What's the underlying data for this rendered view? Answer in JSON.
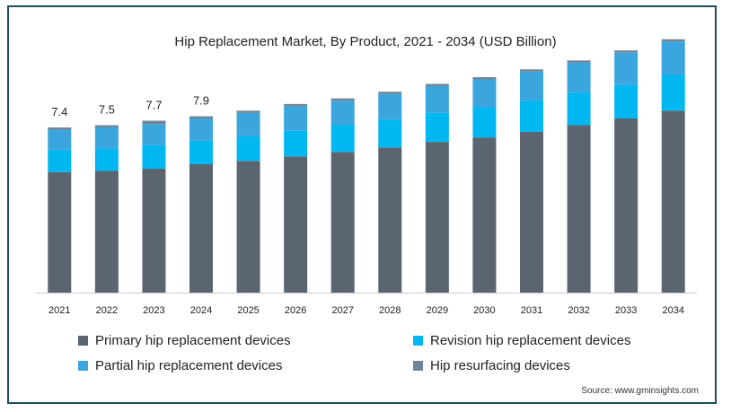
{
  "chart_data": {
    "type": "bar",
    "stacked": true,
    "title": "Hip Replacement Market, By Product, 2021 - 2034 (USD Billion)",
    "xlabel": "",
    "ylabel": "",
    "categories": [
      "2021",
      "2022",
      "2023",
      "2024",
      "2025",
      "2026",
      "2027",
      "2028",
      "2029",
      "2030",
      "2031",
      "2032",
      "2033",
      "2034"
    ],
    "series": [
      {
        "name": "Primary hip replacement devices",
        "color": "#5a6570",
        "values": [
          5.4,
          5.45,
          5.55,
          5.75,
          5.9,
          6.1,
          6.3,
          6.5,
          6.75,
          6.95,
          7.2,
          7.5,
          7.8,
          8.15
        ]
      },
      {
        "name": "Revision hip replacement devices",
        "color": "#00b7f1",
        "values": [
          1.0,
          1.0,
          1.05,
          1.05,
          1.1,
          1.15,
          1.2,
          1.25,
          1.3,
          1.35,
          1.4,
          1.45,
          1.5,
          1.6
        ]
      },
      {
        "name": "Partial hip replacement devices",
        "color": "#3ba6dd",
        "values": [
          0.9,
          0.95,
          0.95,
          1.0,
          1.05,
          1.1,
          1.1,
          1.15,
          1.2,
          1.25,
          1.3,
          1.35,
          1.45,
          1.5
        ]
      },
      {
        "name": "Hip resurfacing devices",
        "color": "#6f8597",
        "values": [
          0.1,
          0.1,
          0.15,
          0.1,
          0.1,
          0.1,
          0.1,
          0.1,
          0.1,
          0.1,
          0.1,
          0.1,
          0.1,
          0.1
        ]
      }
    ],
    "totals_labels": [
      {
        "category": "2021",
        "text": "7.4"
      },
      {
        "category": "2022",
        "text": "7.5"
      },
      {
        "category": "2023",
        "text": "7.7"
      },
      {
        "category": "2024",
        "text": "7.9"
      }
    ],
    "ylim": [
      0,
      11.5
    ],
    "grid": false,
    "legend_position": "bottom"
  },
  "legend": [
    {
      "label": "Primary hip replacement devices",
      "color": "#5a6570"
    },
    {
      "label": "Revision hip replacement devices",
      "color": "#00b7f1"
    },
    {
      "label": "Partial hip replacement devices",
      "color": "#3ba6dd"
    },
    {
      "label": "Hip resurfacing devices",
      "color": "#6f8597"
    }
  ],
  "source": "Source: www.gminsights.com"
}
